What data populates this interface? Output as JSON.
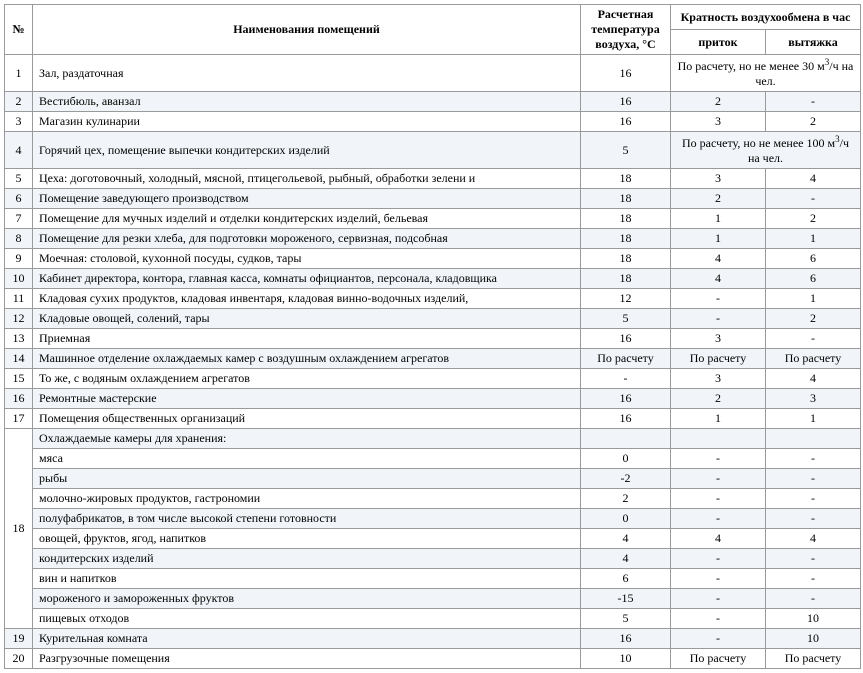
{
  "header": {
    "num": "№",
    "name": "Наименования помещений",
    "temp": "Расчетная температура воздуха, °С",
    "air_group": "Кратность воздухообмена в час",
    "inflow": "приток",
    "outflow": "вытяжка"
  },
  "calc_note1": "По расчету, но не менее 30 м³/ч на чел.",
  "calc_note2": "По расчету, но не менее 100 м³/ч на чел.",
  "rows_simple": [
    {
      "n": "2",
      "name": "Вестибюль, аванзал",
      "t": "16",
      "in": "2",
      "out": "-",
      "odd": true
    },
    {
      "n": "3",
      "name": "Магазин кулинарии",
      "t": "16",
      "in": "3",
      "out": "2",
      "odd": false
    }
  ],
  "rows_after4": [
    {
      "n": "5",
      "name": "Цеха: доготовочный, холодный, мясной, птицегольевой, рыбный, обработки зелени и",
      "t": "18",
      "in": "3",
      "out": "4",
      "odd": false
    },
    {
      "n": "6",
      "name": "Помещение заведующего производством",
      "t": "18",
      "in": "2",
      "out": "-",
      "odd": true
    },
    {
      "n": "7",
      "name": "Помещение для мучных изделий и отделки кондитерских изделий, бельевая",
      "t": "18",
      "in": "1",
      "out": "2",
      "odd": false
    },
    {
      "n": "8",
      "name": "Помещение для резки хлеба, для подготовки мороженого, сервизная, подсобная",
      "t": "18",
      "in": "1",
      "out": "1",
      "odd": true
    },
    {
      "n": "9",
      "name": "Моечная: столовой, кухонной посуды, судков, тары",
      "t": "18",
      "in": "4",
      "out": "6",
      "odd": false
    },
    {
      "n": "10",
      "name": "Кабинет директора, контора, главная касса, комнаты официантов, персонала, кладовщика",
      "t": "18",
      "in": "4",
      "out": "6",
      "odd": true
    },
    {
      "n": "11",
      "name": "Кладовая сухих продуктов, кладовая инвентаря, кладовая винно-водочных изделий,",
      "t": "12",
      "in": "-",
      "out": "1",
      "odd": false
    },
    {
      "n": "12",
      "name": "Кладовые овощей, солений, тары",
      "t": "5",
      "in": "-",
      "out": "2",
      "odd": true
    },
    {
      "n": "13",
      "name": "Приемная",
      "t": "16",
      "in": "3",
      "out": "-",
      "odd": false
    },
    {
      "n": "14",
      "name": "Машинное отделение охлаждаемых камер с воздушным охлаждением агрегатов",
      "t": "По расчету",
      "in": "По расчету",
      "out": "По расчету",
      "odd": true
    },
    {
      "n": "15",
      "name": "То же, с водяным охлаждением агрегатов",
      "t": "-",
      "in": "3",
      "out": "4",
      "odd": false
    },
    {
      "n": "16",
      "name": "Ремонтные мастерские",
      "t": "16",
      "in": "2",
      "out": "3",
      "odd": true
    },
    {
      "n": "17",
      "name": "Помещения общественных организаций",
      "t": "16",
      "in": "1",
      "out": "1",
      "odd": false
    }
  ],
  "group18_title": "Охлаждаемые камеры для хранения:",
  "group18_rows": [
    {
      "name": "мяса",
      "t": "0",
      "in": "-",
      "out": "-",
      "odd": false
    },
    {
      "name": "рыбы",
      "t": "-2",
      "in": "-",
      "out": "-",
      "odd": true
    },
    {
      "name": "молочно-жировых продуктов, гастрономии",
      "t": "2",
      "in": "-",
      "out": "-",
      "odd": false
    },
    {
      "name": "полуфабрикатов, в том числе высокой степени готовности",
      "t": "0",
      "in": "-",
      "out": "-",
      "odd": true
    },
    {
      "name": "овощей, фруктов, ягод, напитков",
      "t": "4",
      "in": "4",
      "out": "4",
      "odd": false
    },
    {
      "name": "кондитерских изделий",
      "t": "4",
      "in": "-",
      "out": "-",
      "odd": true
    },
    {
      "name": "вин и напитков",
      "t": "6",
      "in": "-",
      "out": "-",
      "odd": false
    },
    {
      "name": "мороженого и замороженных фруктов",
      "t": "-15",
      "in": "-",
      "out": "-",
      "odd": true
    },
    {
      "name": "пищевых отходов",
      "t": "5",
      "in": "-",
      "out": "10",
      "odd": false
    }
  ],
  "rows_tail": [
    {
      "n": "19",
      "name": "Курительная комната",
      "t": "16",
      "in": "-",
      "out": "10",
      "odd": true
    },
    {
      "n": "20",
      "name": "Разгрузочные помещения",
      "t": "10",
      "in": "По расчету",
      "out": "По расчету",
      "odd": false
    }
  ],
  "row1": {
    "n": "1",
    "name": "Зал, раздаточная",
    "t": "16"
  },
  "row4": {
    "n": "4",
    "name": "Горячий цех, помещение выпечки кондитерских изделий",
    "t": "5"
  },
  "colors": {
    "odd_bg": "#f1f5f9",
    "even_bg": "#ffffff",
    "border": "#9a9a9a"
  }
}
